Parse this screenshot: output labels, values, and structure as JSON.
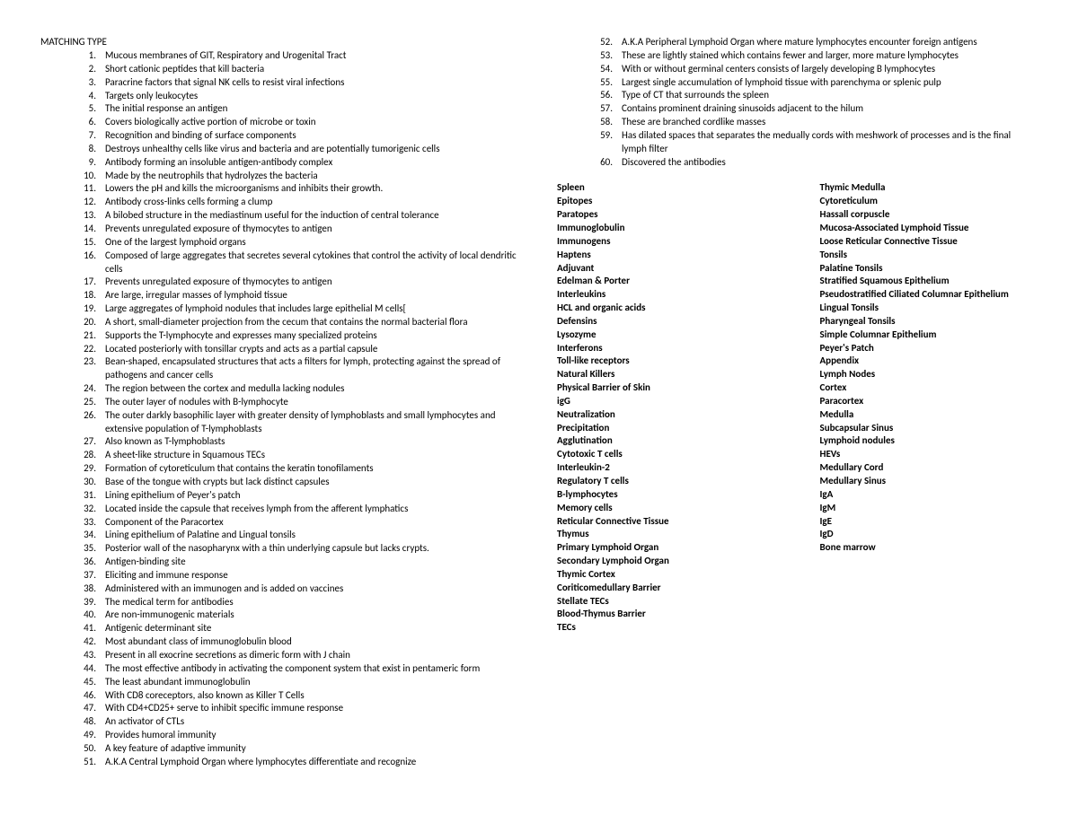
{
  "heading": "MATCHING TYPE",
  "questions_left": [
    {
      "n": "1.",
      "t": "Mucous membranes of GIT, Respiratory and Urogenital Tract"
    },
    {
      "n": "2.",
      "t": "Short cationic peptides that kill bacteria"
    },
    {
      "n": "3.",
      "t": "Paracrine factors that signal NK cells to resist viral infections"
    },
    {
      "n": "4.",
      "t": "Targets only leukocytes"
    },
    {
      "n": "5.",
      "t": "The initial response an antigen"
    },
    {
      "n": "6.",
      "t": "Covers biologically active portion of microbe or toxin"
    },
    {
      "n": "7.",
      "t": "Recognition and binding of surface components"
    },
    {
      "n": "8.",
      "t": "Destroys unhealthy cells like virus and bacteria and are potentially tumorigenic cells"
    },
    {
      "n": "9.",
      "t": "Antibody forming an insoluble antigen-antibody complex"
    },
    {
      "n": "10.",
      "t": "Made by the neutrophils that hydrolyzes the bacteria"
    },
    {
      "n": "11.",
      "t": "Lowers the pH and kills the microorganisms and inhibits their growth."
    },
    {
      "n": "12.",
      "t": "Antibody cross-links cells forming a clump"
    },
    {
      "n": "13.",
      "t": "A bilobed structure in the mediastinum useful for the induction of central tolerance"
    },
    {
      "n": "14.",
      "t": "Prevents unregulated exposure of thymocytes to antigen"
    },
    {
      "n": "15.",
      "t": "One of the largest lymphoid organs"
    },
    {
      "n": "16.",
      "t": "Composed of large aggregates that secretes several cytokines that control the activity of local dendritic cells"
    },
    {
      "n": "17.",
      "t": "Prevents unregulated exposure of thymocytes to antigen"
    },
    {
      "n": "18.",
      "t": "Are large, irregular masses of lymphoid tissue"
    },
    {
      "n": "19.",
      "t": "Large aggregates of lymphoid nodules that includes large epithelial M cells["
    },
    {
      "n": "20.",
      "t": "A short, small-diameter projection from the cecum that contains the normal bacterial flora"
    },
    {
      "n": "21.",
      "t": "Supports the T-lymphocyte and expresses many specialized proteins"
    },
    {
      "n": "22.",
      "t": "Located posteriorly with tonsillar crypts and acts as a partial capsule"
    },
    {
      "n": "23.",
      "t": "Bean-shaped, encapsulated structures that acts a filters for lymph, protecting against the spread of pathogens and cancer cells"
    },
    {
      "n": "24.",
      "t": "The region between the cortex and medulla lacking nodules"
    },
    {
      "n": "25.",
      "t": "The outer layer of nodules with B-lymphocyte"
    },
    {
      "n": "26.",
      "t": "The outer darkly basophilic layer with greater density of lymphoblasts and small lymphocytes and extensive population of T-lymphoblasts"
    },
    {
      "n": "27.",
      "t": "Also known as T-lymphoblasts"
    },
    {
      "n": "28.",
      "t": "A sheet-like structure in Squamous TECs"
    },
    {
      "n": "29.",
      "t": "Formation of cytoreticulum that contains the keratin tonofilaments"
    },
    {
      "n": "30.",
      "t": "Base of the tongue with crypts but lack distinct capsules"
    },
    {
      "n": "31.",
      "t": "Lining epithelium of Peyer's patch"
    },
    {
      "n": "32.",
      "t": "Located inside the capsule that receives lymph from the afferent lymphatics"
    },
    {
      "n": "33.",
      "t": "Component of the Paracortex"
    },
    {
      "n": "34.",
      "t": "Lining epithelium of Palatine and Lingual tonsils"
    },
    {
      "n": "35.",
      "t": "Posterior wall of the nasopharynx with a thin underlying capsule but lacks crypts."
    },
    {
      "n": "36.",
      "t": "Antigen-binding site"
    },
    {
      "n": "37.",
      "t": "Eliciting and immune response"
    },
    {
      "n": "38.",
      "t": "Administered with an immunogen and is added on vaccines"
    },
    {
      "n": "39.",
      "t": "The medical term for antibodies"
    },
    {
      "n": "40.",
      "t": "Are non-immunogenic materials"
    },
    {
      "n": "41.",
      "t": "Antigenic determinant site"
    },
    {
      "n": "42.",
      "t": "Most abundant class of immunoglobulin blood"
    },
    {
      "n": "43.",
      "t": "Present in all exocrine secretions as dimeric form with J chain"
    },
    {
      "n": "44.",
      "t": "The most effective antibody in activating the component system that exist in pentameric form"
    },
    {
      "n": "45.",
      "t": "The least abundant immunoglobulin"
    },
    {
      "n": "46.",
      "t": "With CD8 coreceptors, also known as Killer T Cells"
    },
    {
      "n": "47.",
      "t": "With CD4+CD25+ serve to inhibit specific immune response"
    },
    {
      "n": "48.",
      "t": "An activator of CTLs"
    },
    {
      "n": "49.",
      "t": "Provides humoral immunity"
    },
    {
      "n": "50.",
      "t": "A key feature of adaptive immunity"
    },
    {
      "n": "51.",
      "t": "A.K.A Central Lymphoid Organ where lymphocytes differentiate and recognize"
    }
  ],
  "questions_right": [
    {
      "n": "52.",
      "t": "A.K.A Peripheral Lymphoid Organ where mature lymphocytes encounter foreign antigens"
    },
    {
      "n": "53.",
      "t": "These are lightly stained which contains fewer and larger, more mature lymphocytes"
    },
    {
      "n": "54.",
      "t": "With or without germinal centers consists of largely developing B lymphocytes"
    },
    {
      "n": "55.",
      "t": "Largest single accumulation of lymphoid tissue with parenchyma or splenic pulp"
    },
    {
      "n": "56.",
      "t": "Type of CT that surrounds the spleen"
    },
    {
      "n": "57.",
      "t": "Contains prominent draining sinusoids adjacent to the hilum"
    },
    {
      "n": "58.",
      "t": "These are branched cordlike masses"
    },
    {
      "n": "59.",
      "t": "Has dilated spaces that separates the medually cords with meshwork of processes and is the final lymph filter"
    },
    {
      "n": "60.",
      "t": "Discovered the antibodies"
    }
  ],
  "answers_left": [
    "Spleen",
    "Epitopes",
    "Paratopes",
    "Immunoglobulin",
    "Immunogens",
    "Haptens",
    "Adjuvant",
    "Edelman & Porter",
    "Interleukins",
    "HCL and organic acids",
    "Defensins",
    "Lysozyme",
    "Interferons",
    "Toll-like receptors",
    "Natural Killers",
    "Physical Barrier of Skin",
    "igG",
    "Neutralization",
    "Precipitation",
    "Agglutination",
    "Cytotoxic T cells",
    "Interleukin-2",
    "Regulatory T cells",
    "B-lymphocytes",
    "Memory cells",
    "Reticular Connective Tissue",
    "Thymus",
    "Primary Lymphoid Organ",
    "Secondary Lymphoid Organ",
    "Thymic Cortex",
    "Coriticomedullary Barrier",
    "Stellate TECs",
    "Blood-Thymus Barrier",
    "TECs"
  ],
  "answers_right": [
    "Thymic Medulla",
    "Cytoreticulum",
    "Hassall corpuscle",
    "Mucosa-Associated Lymphoid Tissue",
    "Loose Reticular Connective Tissue",
    "Tonsils",
    "Palatine Tonsils",
    "Stratified Squamous Epithelium",
    "Pseudostratified Ciliated Columnar Epithelium",
    "Lingual Tonsils",
    "Pharyngeal Tonsils",
    "Simple Columnar Epithelium",
    "Peyer's Patch",
    "Appendix",
    "Lymph Nodes",
    "Cortex",
    "Paracortex",
    "Medulla",
    "Subcapsular Sinus",
    "Lymphoid nodules",
    "HEVs",
    "Medullary Cord",
    "Medullary Sinus",
    "IgA",
    "IgM",
    "IgE",
    "IgD",
    "Bone marrow"
  ]
}
